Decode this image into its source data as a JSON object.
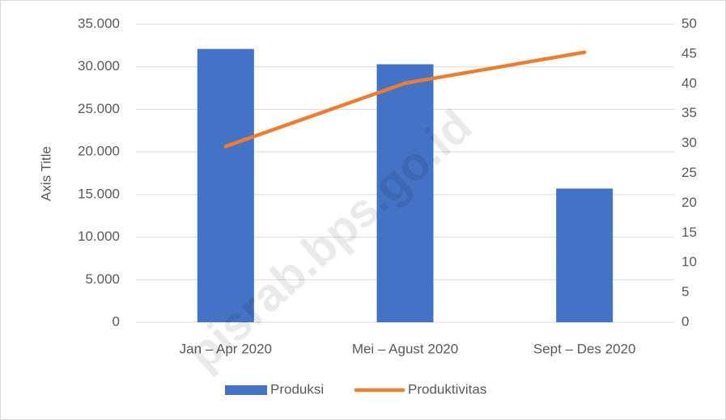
{
  "chart_data": {
    "type": "bar_line",
    "y_axis_label": "Axis Title",
    "categories": [
      "Jan – Apr 2020",
      "Mei – Agust 2020",
      "Sept – Des 2020"
    ],
    "series": [
      {
        "name": "Produksi",
        "type": "bar",
        "color": "#4472c4",
        "values": [
          32100,
          30300,
          15700
        ]
      },
      {
        "name": "Produktivitas",
        "type": "line",
        "color": "#ed7d31",
        "axis": "y2",
        "values": [
          29.5,
          40.1,
          45.3
        ]
      }
    ],
    "ylim": [
      0,
      35000
    ],
    "yticks": [
      {
        "value": 0,
        "label": "0"
      },
      {
        "value": 5000,
        "label": "5.000"
      },
      {
        "value": 10000,
        "label": "10.000"
      },
      {
        "value": 15000,
        "label": "15.000"
      },
      {
        "value": 20000,
        "label": "20.000"
      },
      {
        "value": 25000,
        "label": "25.000"
      },
      {
        "value": 30000,
        "label": "30.000"
      },
      {
        "value": 35000,
        "label": "35.000"
      }
    ],
    "y2lim": [
      0,
      50
    ],
    "y2ticks": [
      0,
      5,
      10,
      15,
      20,
      25,
      30,
      35,
      40,
      45,
      50
    ],
    "grid": true,
    "legend": "bottom",
    "watermark": "pisrab.bps.go.id"
  }
}
